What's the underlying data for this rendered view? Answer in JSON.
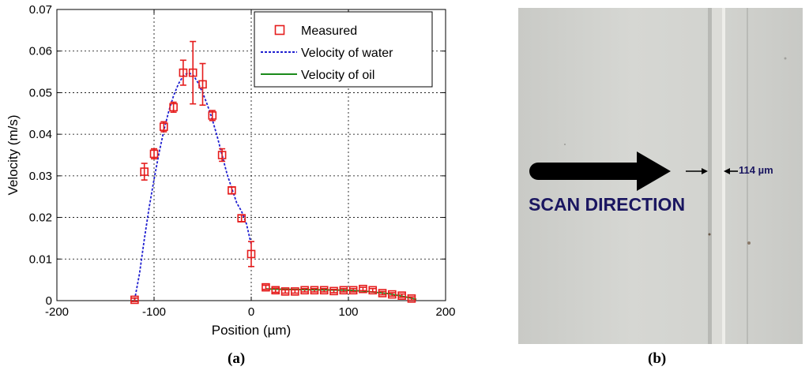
{
  "chart_data": {
    "type": "scatter",
    "xlabel": "Position (µm)",
    "ylabel": "Velocity (m/s)",
    "xlim": [
      -200,
      200
    ],
    "ylim": [
      0,
      0.07
    ],
    "xticks": [
      -200,
      -100,
      0,
      100,
      200
    ],
    "yticks": [
      0,
      0.01,
      0.02,
      0.03,
      0.04,
      0.05,
      0.06,
      0.07
    ],
    "xtick_labels": [
      "-200",
      "-100",
      "0",
      "100",
      "200"
    ],
    "ytick_labels": [
      "0",
      "0.01",
      "0.02",
      "0.03",
      "0.04",
      "0.05",
      "0.06",
      "0.07"
    ],
    "grid": true,
    "legend_position": "top-right",
    "series": [
      {
        "name": "Measured",
        "kind": "scatter-errorbar",
        "color": "#e51c1c",
        "marker": "square",
        "x": [
          -120,
          -110,
          -100,
          -90,
          -80,
          -70,
          -60,
          -50,
          -40,
          -30,
          -20,
          -10,
          0,
          15,
          25,
          35,
          45,
          55,
          65,
          75,
          85,
          95,
          105,
          115,
          125,
          135,
          145,
          155,
          165
        ],
        "y": [
          0.0002,
          0.031,
          0.0353,
          0.0418,
          0.0465,
          0.0548,
          0.0548,
          0.052,
          0.0445,
          0.035,
          0.0265,
          0.0198,
          0.0112,
          0.0032,
          0.0025,
          0.0022,
          0.0022,
          0.0025,
          0.0025,
          0.0025,
          0.0023,
          0.0025,
          0.0025,
          0.0028,
          0.0025,
          0.0018,
          0.0015,
          0.0012,
          0.0005
        ],
        "err": [
          0.0004,
          0.002,
          0.0012,
          0.0012,
          0.0012,
          0.003,
          0.0075,
          0.005,
          0.0012,
          0.0015,
          0.0008,
          0.0008,
          0.003,
          0.0005,
          0.0005,
          0.0004,
          0.0004,
          0.0004,
          0.0004,
          0.0004,
          0.0004,
          0.0004,
          0.0004,
          0.0004,
          0.0004,
          0.0004,
          0.0004,
          0.0004,
          0.0004
        ]
      },
      {
        "name": "Velocity of water",
        "kind": "line",
        "color": "#1f1fd0",
        "dash": true,
        "x": [
          -120,
          -115,
          -110,
          -105,
          -100,
          -95,
          -90,
          -85,
          -80,
          -75,
          -70,
          -65,
          -60,
          -55,
          -50,
          -45,
          -40,
          -35,
          -30,
          -25,
          -20,
          -15,
          -10,
          -5,
          0
        ],
        "y": [
          0.0002,
          0.0065,
          0.0148,
          0.0224,
          0.0292,
          0.0354,
          0.0408,
          0.0454,
          0.0492,
          0.0521,
          0.054,
          0.0548,
          0.0543,
          0.0525,
          0.05,
          0.047,
          0.0435,
          0.0395,
          0.035,
          0.0305,
          0.027,
          0.0235,
          0.0215,
          0.0185,
          0.0135
        ]
      },
      {
        "name": "Velocity of oil",
        "kind": "line",
        "color": "#1a8a1a",
        "dash": false,
        "x": [
          15,
          40,
          70,
          100,
          120,
          140,
          155,
          170
        ],
        "y": [
          0.0028,
          0.0027,
          0.0026,
          0.0025,
          0.0022,
          0.0017,
          0.0011,
          0.0003
        ]
      }
    ]
  },
  "captions": {
    "left": "(a)",
    "right": "(b)"
  },
  "photo": {
    "arrow_label": "SCAN DIRECTION",
    "width_label": "114 µm"
  }
}
